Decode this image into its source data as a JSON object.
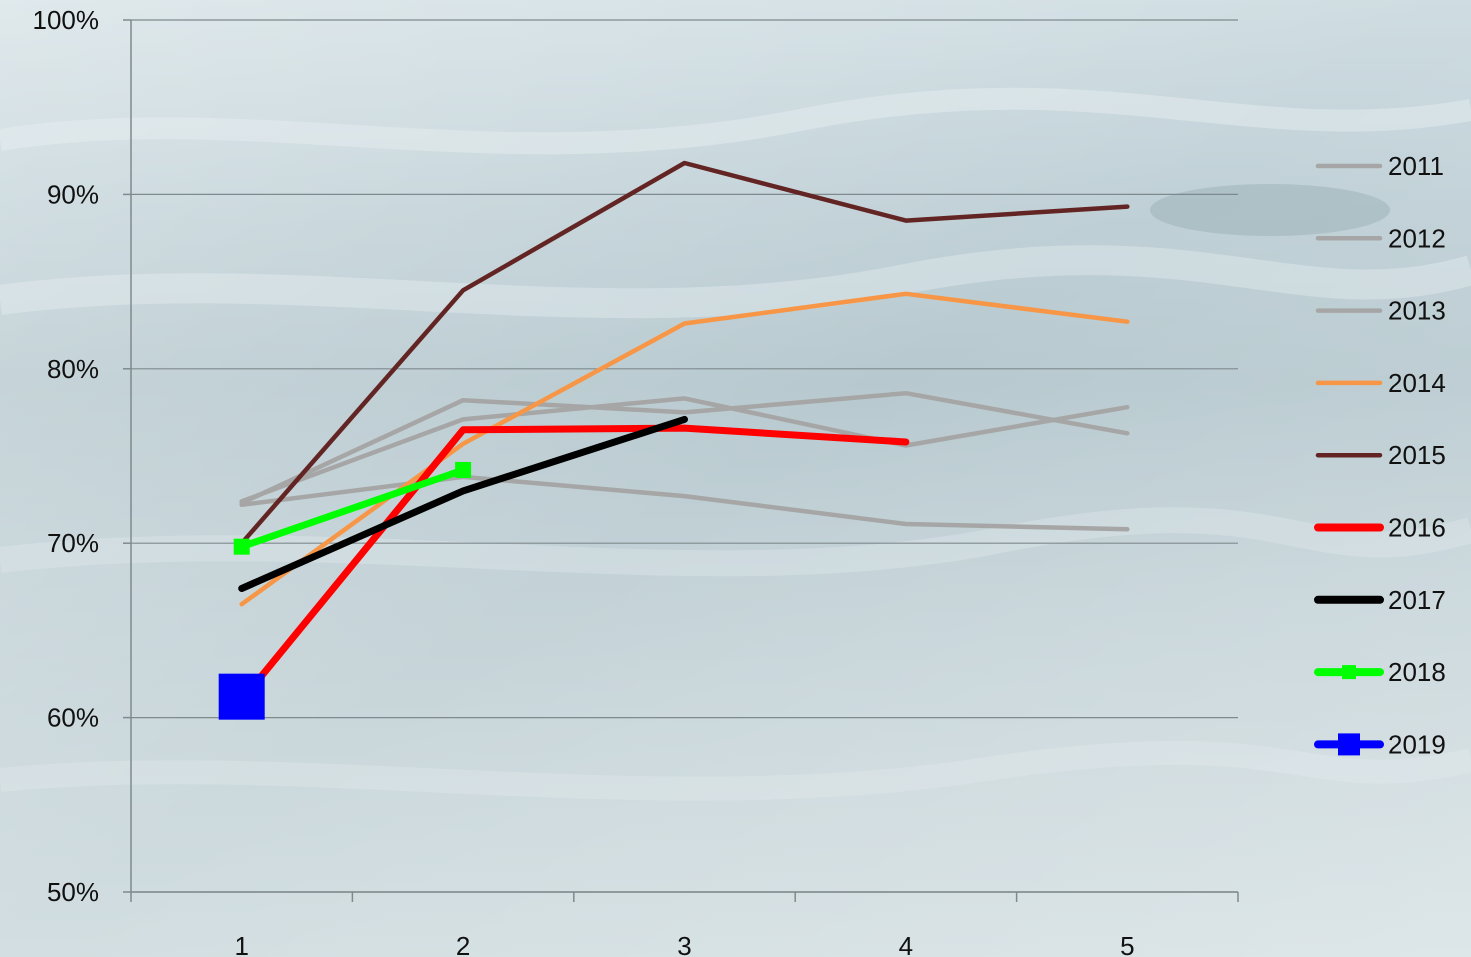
{
  "chart_data": {
    "type": "line",
    "title": "",
    "xlabel": "",
    "ylabel": "",
    "x": [
      1,
      2,
      3,
      4,
      5
    ],
    "x_tick_labels": [
      "1",
      "2",
      "3",
      "4",
      "5"
    ],
    "ylim": [
      50,
      100
    ],
    "y_ticks": [
      50,
      60,
      70,
      80,
      90,
      100
    ],
    "y_tick_labels": [
      "50%",
      "60%",
      "70%",
      "80%",
      "90%",
      "100%"
    ],
    "grid": "horizontal",
    "legend_position": "right",
    "series": [
      {
        "name": "2011",
        "color": "#a6a6a6",
        "weight": "thin",
        "marker": "none",
        "values": [
          72.2,
          73.8,
          72.7,
          71.1,
          70.8
        ]
      },
      {
        "name": "2012",
        "color": "#a6a6a6",
        "weight": "thin",
        "marker": "none",
        "values": [
          72.3,
          78.2,
          77.5,
          78.6,
          76.3
        ]
      },
      {
        "name": "2013",
        "color": "#a6a6a6",
        "weight": "thin",
        "marker": "none",
        "values": [
          72.4,
          77.1,
          78.3,
          75.6,
          77.8
        ]
      },
      {
        "name": "2014",
        "color": "#f79646",
        "weight": "thin",
        "marker": "none",
        "values": [
          66.5,
          75.7,
          82.6,
          84.3,
          82.7
        ]
      },
      {
        "name": "2015",
        "color": "#632523",
        "weight": "thin",
        "marker": "none",
        "values": [
          70.0,
          84.5,
          91.8,
          88.5,
          89.3
        ]
      },
      {
        "name": "2016",
        "color": "#ff0000",
        "weight": "thick",
        "marker": "none",
        "values": [
          61.0,
          76.5,
          76.6,
          75.8,
          null
        ]
      },
      {
        "name": "2017",
        "color": "#000000",
        "weight": "thick",
        "marker": "none",
        "values": [
          67.4,
          73.0,
          77.1,
          null,
          null
        ]
      },
      {
        "name": "2018",
        "color": "#00ff00",
        "weight": "thick",
        "marker": "square",
        "values": [
          69.8,
          74.2,
          null,
          null,
          null
        ]
      },
      {
        "name": "2019",
        "color": "#0000ff",
        "weight": "thick",
        "marker": "square-large",
        "values": [
          61.2,
          null,
          null,
          null,
          null
        ]
      }
    ]
  }
}
